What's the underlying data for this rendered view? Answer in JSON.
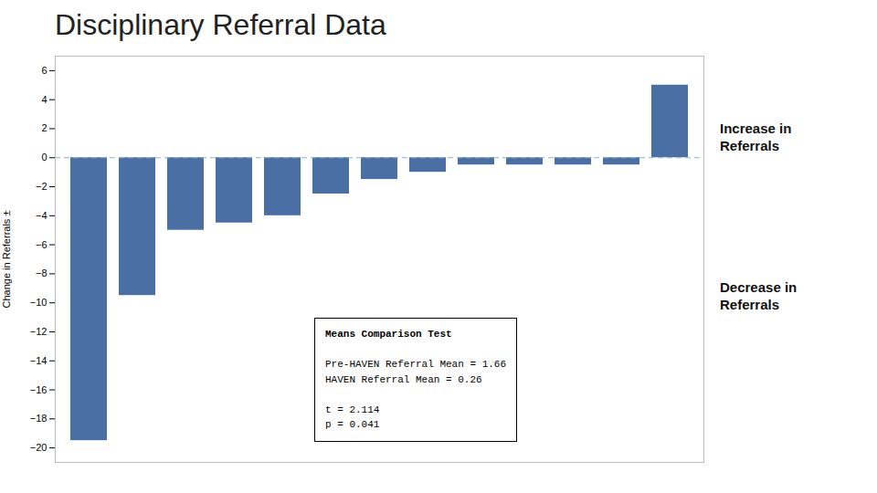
{
  "chart_data": {
    "type": "bar",
    "title": "Disciplinary Referral Data",
    "ylabel": "Change in Referrals ±",
    "categories": [
      null,
      null,
      null,
      null,
      null,
      null,
      null,
      null,
      null,
      null,
      null,
      null,
      null
    ],
    "values": [
      -19.5,
      -9.5,
      -5.0,
      -4.5,
      -4.0,
      -2.5,
      -1.5,
      -1.0,
      -0.5,
      -0.5,
      -0.5,
      -0.5,
      5.0
    ],
    "color": "#4a6fa5",
    "ylim": [
      -21,
      7
    ],
    "yticks": [
      -20,
      -18,
      -16,
      -14,
      -12,
      -10,
      -8,
      -6,
      -4,
      -2,
      0,
      2,
      4,
      6
    ],
    "grid": false,
    "tick_labels": "y",
    "reference_line": {
      "value": 0,
      "color": "#8ab4cc",
      "line_style": "dashed"
    },
    "annotation_box": [
      [
        "Means Comparison Test"
      ],
      [
        "Pre-HAVEN Referral Mean = 1.66",
        "HAVEN Referral Mean = 0.26"
      ],
      [
        "t = 2.114",
        "p = 0.041"
      ]
    ],
    "side_labels": [
      "Increase in\nReferrals",
      "Decrease in\nReferrals"
    ]
  }
}
